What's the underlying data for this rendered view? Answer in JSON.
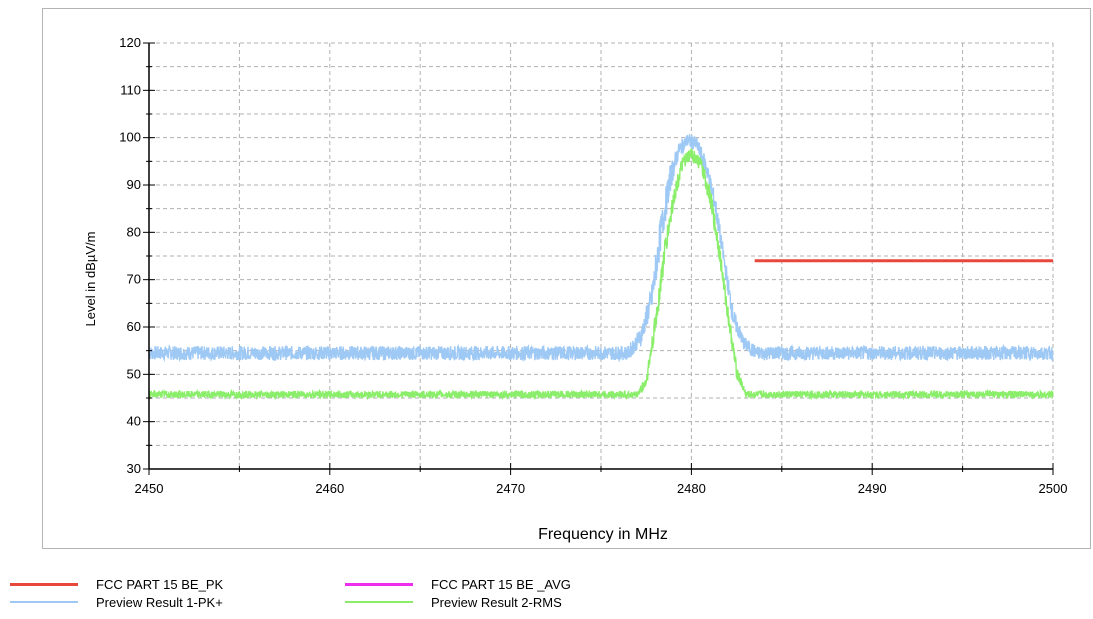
{
  "chart_data": {
    "type": "line",
    "xlabel": "Frequency in MHz",
    "ylabel": "Level in dBµV/m",
    "xlim": [
      2450,
      2500
    ],
    "ylim": [
      30,
      120
    ],
    "x_ticks": [
      "2450",
      "2460",
      "2470",
      "2480",
      "2490",
      "2500"
    ],
    "y_ticks": [
      "30",
      "40",
      "50",
      "60",
      "70",
      "80",
      "90",
      "100",
      "110",
      "120"
    ],
    "grid": true,
    "series": [
      {
        "name": "FCC PART 15 BE_PK",
        "color": "#e8473c",
        "x": [
          2483.5,
          2500
        ],
        "y": [
          74,
          74
        ]
      },
      {
        "name": "Preview Result 1-PK+",
        "color": "#9fc9f5",
        "band": true,
        "x": [
          2450,
          2476.5,
          2477.2,
          2477.8,
          2478.3,
          2478.8,
          2479.3,
          2479.8,
          2480.3,
          2480.8,
          2481.3,
          2481.8,
          2482.3,
          2482.9,
          2483.6,
          2500
        ],
        "y_low": [
          53,
          53,
          56,
          63,
          76,
          88,
          96,
          98,
          97,
          92,
          84,
          72,
          60,
          55,
          53,
          53
        ],
        "y_high": [
          56,
          56,
          60,
          69,
          84,
          94,
          99,
          101,
          100,
          96,
          88,
          76,
          64,
          58,
          56,
          56
        ]
      },
      {
        "name": "Preview Result 2-RMS",
        "color": "#8aee6a",
        "band": true,
        "x": [
          2450,
          2477.0,
          2477.5,
          2478.0,
          2478.5,
          2479.0,
          2479.5,
          2480.0,
          2480.5,
          2481.0,
          2481.5,
          2482.0,
          2482.5,
          2483.0,
          2500
        ],
        "y_low": [
          45,
          45,
          47,
          58,
          73,
          85,
          93,
          95,
          93,
          86,
          75,
          61,
          49,
          45,
          45
        ],
        "y_high": [
          46.5,
          46.5,
          50,
          63,
          78,
          89,
          96,
          98,
          96,
          90,
          79,
          65,
          52,
          46.5,
          46.5
        ]
      }
    ],
    "legend": [
      {
        "label": "FCC PART 15 BE_PK",
        "color": "#e8473c"
      },
      {
        "label": "FCC PART 15 BE _AVG",
        "color": "#ee2eee"
      },
      {
        "label": "Preview Result 1-PK+",
        "color": "#9fc9f5"
      },
      {
        "label": "Preview Result 2-RMS",
        "color": "#8aee6a"
      }
    ]
  }
}
